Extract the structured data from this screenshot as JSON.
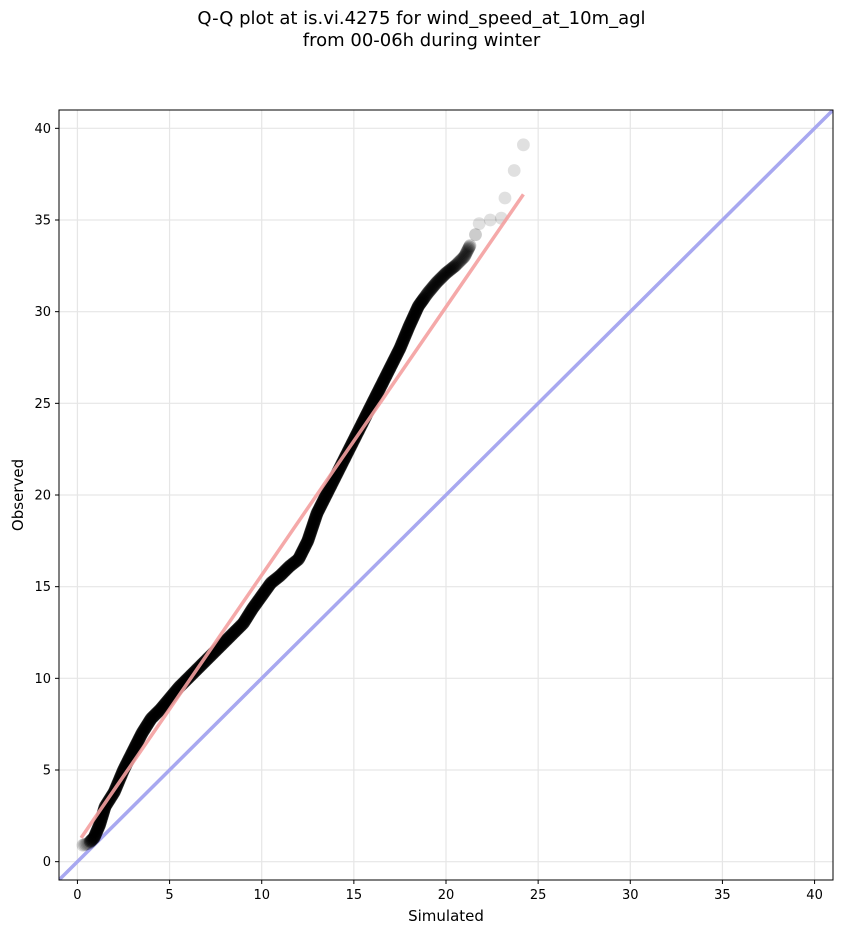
{
  "chart_data": {
    "type": "scatter",
    "title_line1": "Q-Q plot at is.vi.4275 for wind_speed_at_10m_agl",
    "title_line2": "from 00-06h during winter",
    "xlabel": "Simulated",
    "ylabel": "Observed",
    "xlim": [
      -1,
      41
    ],
    "ylim": [
      -1,
      41
    ],
    "x_ticks": [
      0,
      5,
      10,
      15,
      20,
      25,
      30,
      35,
      40
    ],
    "y_ticks": [
      0,
      5,
      10,
      15,
      20,
      25,
      30,
      35,
      40
    ],
    "grid": true,
    "colors": {
      "points": "#000000",
      "fit_line": "#f4a0a0",
      "identity_line": "#a8a8f0",
      "grid": "#e6e6e6"
    },
    "quantile_anchors": [
      [
        0.3,
        0.9
      ],
      [
        0.6,
        1.0
      ],
      [
        0.9,
        1.3
      ],
      [
        1.2,
        2.0
      ],
      [
        1.5,
        3.0
      ],
      [
        2.0,
        3.8
      ],
      [
        2.5,
        5.0
      ],
      [
        3.0,
        6.0
      ],
      [
        3.5,
        7.0
      ],
      [
        4.0,
        7.8
      ],
      [
        4.5,
        8.3
      ],
      [
        5.0,
        8.9
      ],
      [
        5.5,
        9.5
      ],
      [
        6.0,
        10.0
      ],
      [
        6.5,
        10.5
      ],
      [
        7.0,
        11.0
      ],
      [
        7.5,
        11.5
      ],
      [
        8.0,
        12.0
      ],
      [
        8.5,
        12.5
      ],
      [
        9.0,
        13.0
      ],
      [
        9.5,
        13.8
      ],
      [
        10.0,
        14.5
      ],
      [
        10.5,
        15.2
      ],
      [
        11.0,
        15.6
      ],
      [
        11.5,
        16.1
      ],
      [
        12.0,
        16.5
      ],
      [
        12.5,
        17.5
      ],
      [
        13.0,
        19.0
      ],
      [
        13.5,
        20.0
      ],
      [
        14.0,
        21.0
      ],
      [
        14.5,
        22.0
      ],
      [
        15.0,
        23.0
      ],
      [
        15.5,
        24.0
      ],
      [
        16.0,
        25.0
      ],
      [
        16.5,
        26.0
      ],
      [
        17.0,
        27.0
      ],
      [
        17.5,
        28.0
      ],
      [
        18.0,
        29.2
      ],
      [
        18.5,
        30.3
      ],
      [
        19.0,
        31.0
      ],
      [
        19.5,
        31.6
      ],
      [
        20.0,
        32.1
      ],
      [
        20.5,
        32.5
      ],
      [
        21.0,
        33.0
      ],
      [
        21.3,
        33.6
      ],
      [
        21.6,
        34.2
      ],
      [
        21.8,
        34.8
      ],
      [
        22.4,
        35.0
      ],
      [
        23.0,
        35.1
      ],
      [
        23.2,
        36.2
      ],
      [
        23.7,
        37.7
      ],
      [
        24.2,
        39.1
      ]
    ],
    "fit_line": [
      [
        0.2,
        1.3
      ],
      [
        24.2,
        36.4
      ]
    ],
    "identity_line": [
      [
        -1,
        -1
      ],
      [
        41,
        41
      ]
    ]
  }
}
